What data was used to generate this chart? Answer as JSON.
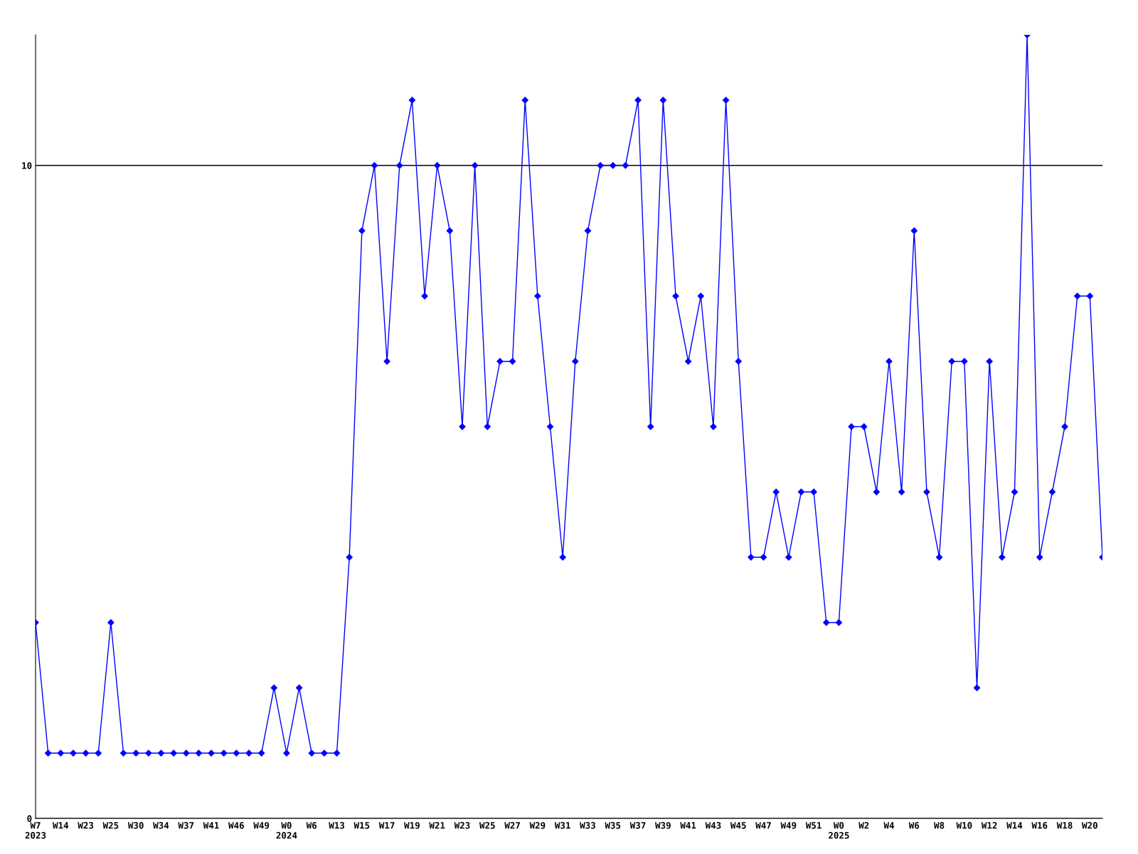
{
  "chart_data": {
    "type": "line",
    "categories": [
      "W7\n2023",
      null,
      "W14",
      null,
      "W23",
      null,
      "W25",
      null,
      "W30",
      null,
      "W34",
      null,
      "W37",
      null,
      "W41",
      null,
      "W46",
      null,
      "W49",
      null,
      "W0\n2024",
      null,
      "W6",
      null,
      "W13",
      null,
      "W15",
      null,
      "W17",
      null,
      "W19",
      null,
      "W21",
      null,
      "W23",
      null,
      "W25",
      null,
      "W27",
      null,
      "W29",
      null,
      "W31",
      null,
      "W33",
      null,
      "W35",
      null,
      "W37",
      null,
      "W39",
      null,
      "W41",
      null,
      "W43",
      null,
      "W45",
      null,
      "W47",
      null,
      "W49",
      null,
      "W51",
      null,
      "W0\n2025",
      null,
      "W2",
      null,
      "W4",
      null,
      "W6",
      null,
      "W8",
      null,
      "W10",
      null,
      "W12",
      null,
      "W14",
      null,
      "W16",
      null,
      "W18",
      null,
      "W20",
      null
    ],
    "series": [
      {
        "color": "#0000ff",
        "values": [
          3,
          1,
          1,
          1,
          1,
          1,
          3,
          1,
          1,
          1,
          1,
          1,
          1,
          1,
          1,
          1,
          1,
          1,
          1,
          2,
          1,
          2,
          1,
          1,
          1,
          4,
          9,
          10,
          7,
          10,
          11,
          8,
          10,
          9,
          6,
          10,
          6,
          7,
          7,
          11,
          8,
          6,
          4,
          7,
          9,
          10,
          10,
          10,
          11,
          6,
          11,
          8,
          7,
          8,
          6,
          11,
          7,
          4,
          4,
          5,
          4,
          5,
          5,
          3,
          3,
          6,
          6,
          5,
          7,
          5,
          9,
          5,
          4,
          7,
          7,
          2,
          7,
          4,
          5,
          12,
          4,
          5,
          6,
          8,
          8,
          4
        ]
      }
    ],
    "ylim": [
      0,
      12
    ],
    "yticks": [
      0,
      10
    ],
    "grid": "y",
    "marker": "diamond",
    "line_style": "solid",
    "legend": false
  }
}
